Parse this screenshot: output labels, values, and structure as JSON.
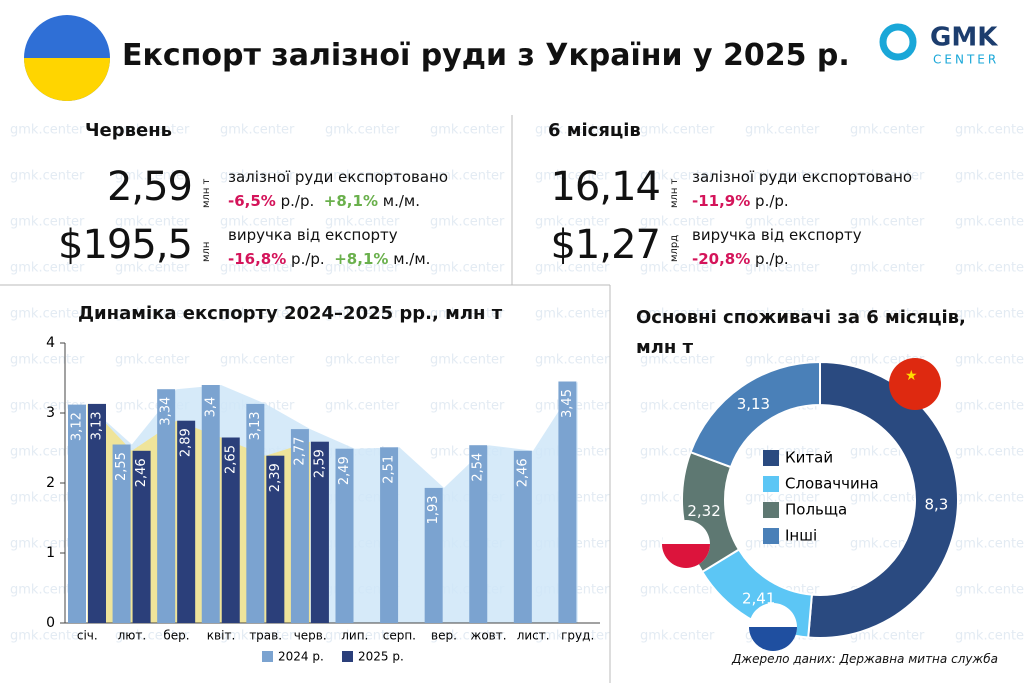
{
  "header": {
    "title": "Експорт залізної руди з України у 2025 р.",
    "logo_main": "GMK",
    "logo_sub": "CENTER"
  },
  "watermark": "gmk.center",
  "kpi": {
    "month": {
      "title": "Червень",
      "rows": [
        {
          "value": "2,59",
          "unit": "млн т",
          "label": "залізної руди експортовано",
          "changes": [
            {
              "value": "-6,5%",
              "period": "р./р."
            },
            {
              "value": "+8,1%",
              "period": "м./м."
            }
          ]
        },
        {
          "value": "$195,5",
          "unit": "млн",
          "label": "виручка від експорту",
          "changes": [
            {
              "value": "-16,8%",
              "period": "р./р."
            },
            {
              "value": "+8,1%",
              "period": "м./м."
            }
          ]
        }
      ]
    },
    "half": {
      "title": "6 місяців",
      "rows": [
        {
          "value": "16,14",
          "unit": "млн т",
          "label": "залізної руди експортовано",
          "changes": [
            {
              "value": "-11,9%",
              "period": "р./р."
            }
          ]
        },
        {
          "value": "$1,27",
          "unit": "млрд",
          "label": "виручка від експорту",
          "changes": [
            {
              "value": "-20,8%",
              "period": "р./р."
            }
          ]
        }
      ]
    }
  },
  "chart_data": [
    {
      "type": "bar",
      "title": "Динаміка експорту 2024–2025 рр., млн т",
      "categories": [
        "січ.",
        "лют.",
        "бер.",
        "квіт.",
        "трав.",
        "черв.",
        "лип.",
        "серп.",
        "вер.",
        "жовт.",
        "лист.",
        "груд."
      ],
      "series": [
        {
          "name": "2024 р.",
          "color": "#7ba3d0",
          "area_color": "#cfe6f8",
          "values": [
            3.12,
            2.55,
            3.34,
            3.4,
            3.13,
            2.77,
            2.49,
            2.51,
            1.93,
            2.54,
            2.46,
            3.45
          ],
          "value_labels": [
            "3,12",
            "2,55",
            "3,34",
            "3,4",
            "3,13",
            "2,77",
            "2,49",
            "2,51",
            "1,93",
            "2,54",
            "2,46",
            "3,45"
          ]
        },
        {
          "name": "2025 р.",
          "color": "#2b3f7a",
          "area_color": "#f3e38a",
          "values": [
            3.13,
            2.46,
            2.89,
            2.65,
            2.39,
            2.59,
            null,
            null,
            null,
            null,
            null,
            null
          ],
          "value_labels": [
            "3,13",
            "2,46",
            "2,89",
            "2,65",
            "2,39",
            "2,59",
            null,
            null,
            null,
            null,
            null,
            null
          ]
        }
      ],
      "ylim": [
        0,
        4
      ],
      "yticks": [
        0,
        1,
        2,
        3,
        4
      ]
    },
    {
      "type": "pie",
      "title": "Основні споживачі за 6 місяців, млн т",
      "categories": [
        "Китай",
        "Словаччина",
        "Польща",
        "Інші"
      ],
      "values": [
        8.3,
        2.41,
        2.32,
        3.13
      ],
      "value_labels": [
        "8,3",
        "2,41",
        "2,32",
        "3,13"
      ],
      "colors": [
        "#2a4a80",
        "#5cc6f5",
        "#5e7872",
        "#4a80b8"
      ]
    }
  ],
  "source": "Джерело даних: Державна митна служба"
}
